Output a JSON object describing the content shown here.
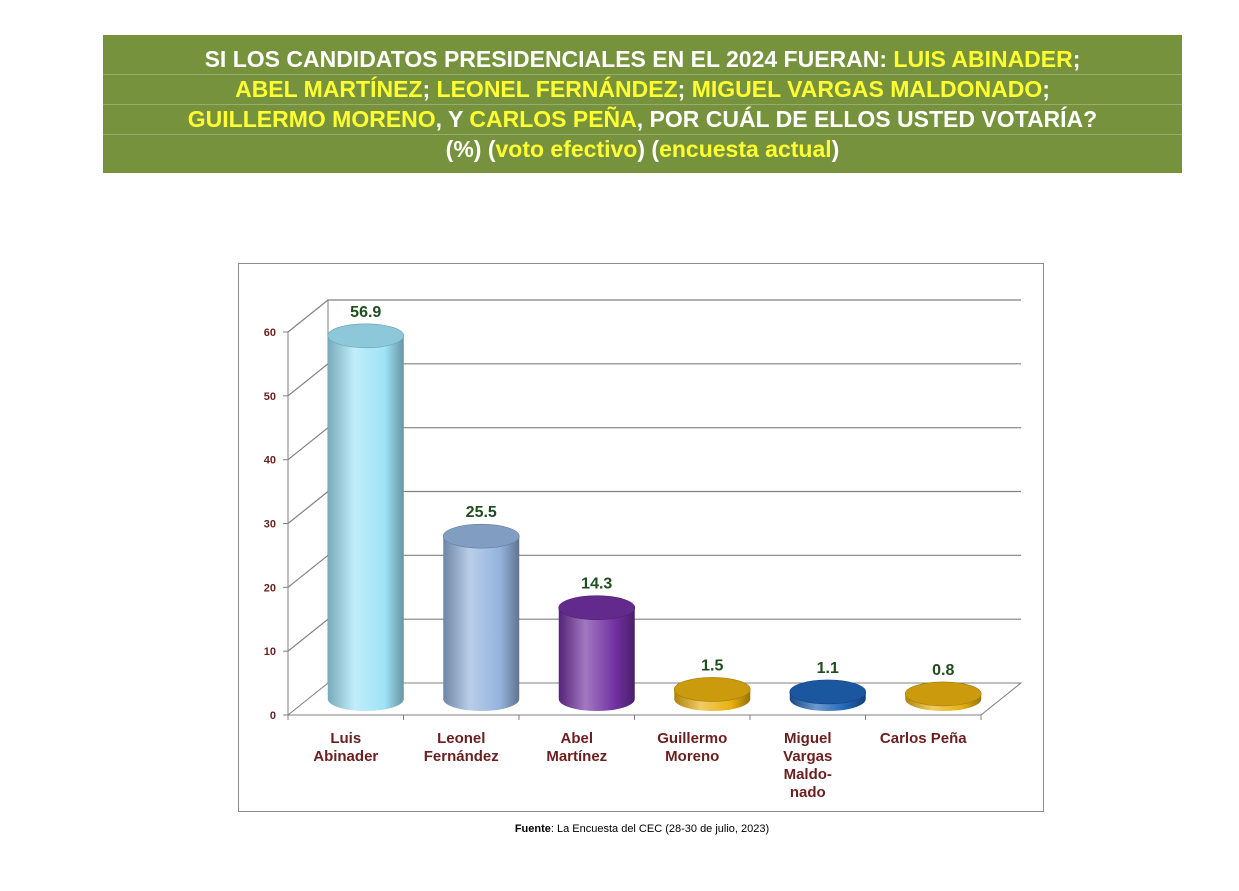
{
  "header": {
    "line1": {
      "a": "SI LOS CANDIDATOS PRESIDENCIALES EN EL 2024 FUERAN: ",
      "b": "LUIS ABINADER",
      "c": ";"
    },
    "line2": {
      "a": "ABEL MARTÍNEZ",
      "b": "; ",
      "c": "LEONEL FERNÁNDEZ",
      "d": "; ",
      "e": "MIGUEL VARGAS MALDONADO",
      "f": ";"
    },
    "line3": {
      "a": "GUILLERMO MORENO",
      "b": ", Y ",
      "c": "CARLOS PEÑA",
      "d": ", POR CUÁL DE ELLOS USTED VOTARÍA?"
    },
    "line4": {
      "a": "(%) (",
      "b": "voto efectivo",
      "c": ") (",
      "d": "encuesta actual",
      "e": ")"
    }
  },
  "colors": {
    "banner_bg": "#76923c",
    "banner_text": "#ffffff",
    "banner_highlight": "#ffff33",
    "tick_label": "#6b1f1f",
    "category_label": "#6b1f1f",
    "value_label": "#1f4d1f"
  },
  "chart_data": {
    "type": "bar",
    "style": "3d-cylinder",
    "categories": [
      [
        "Luis",
        "Abinader"
      ],
      [
        "Leonel",
        "Fernández"
      ],
      [
        "Abel",
        "Martínez"
      ],
      [
        "Guillermo",
        "Moreno"
      ],
      [
        "Miguel",
        "Vargas",
        "Maldo-",
        "nado"
      ],
      [
        "Carlos Peña"
      ]
    ],
    "values": [
      56.9,
      25.5,
      14.3,
      1.5,
      1.1,
      0.8
    ],
    "value_labels": [
      "56.9",
      "25.5",
      "14.3",
      "1.5",
      "1.1",
      "0.8"
    ],
    "bar_colors": [
      "#9fe3f7",
      "#93b3dd",
      "#7030a0",
      "#e8b00f",
      "#1f63b5",
      "#e8b00f"
    ],
    "ylim": [
      0,
      60
    ],
    "yticks": [
      0,
      10,
      20,
      30,
      40,
      50,
      60
    ],
    "grid": true,
    "legend": "none"
  },
  "footer": {
    "source_label": "Fuente",
    "source_text": ": La Encuesta del CEC (28-30 de julio, 2023)"
  }
}
